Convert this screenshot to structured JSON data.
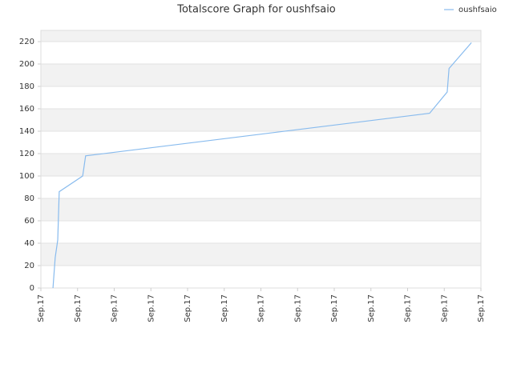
{
  "chart_data": {
    "type": "line",
    "title": "Totalscore Graph for oushfsaio",
    "xlim": [
      0,
      12
    ],
    "xticks": [
      {
        "value": 0,
        "label": "Sep.17"
      },
      {
        "value": 1,
        "label": "Sep.17"
      },
      {
        "value": 2,
        "label": "Sep.17"
      },
      {
        "value": 3,
        "label": "Sep.17"
      },
      {
        "value": 4,
        "label": "Sep.17"
      },
      {
        "value": 5,
        "label": "Sep.17"
      },
      {
        "value": 6,
        "label": "Sep.17"
      },
      {
        "value": 7,
        "label": "Sep.17"
      },
      {
        "value": 8,
        "label": "Sep.17"
      },
      {
        "value": 9,
        "label": "Sep.17"
      },
      {
        "value": 10,
        "label": "Sep.17"
      },
      {
        "value": 11,
        "label": "Sep.17"
      },
      {
        "value": 12,
        "label": "Sep.17"
      }
    ],
    "ylim": [
      0,
      230
    ],
    "yticks": [
      0,
      20,
      40,
      60,
      80,
      100,
      120,
      140,
      160,
      180,
      200,
      220
    ],
    "grid": true,
    "legend": "top-right",
    "x": [
      0.33,
      0.39,
      0.46,
      0.5,
      1.14,
      1.22,
      10.6,
      11.08,
      11.13,
      11.74
    ],
    "series": [
      {
        "name": "oushfsaio",
        "color": "#88bbee",
        "values": [
          0,
          27,
          43,
          86,
          100,
          118,
          156,
          175,
          196,
          219
        ]
      }
    ]
  }
}
